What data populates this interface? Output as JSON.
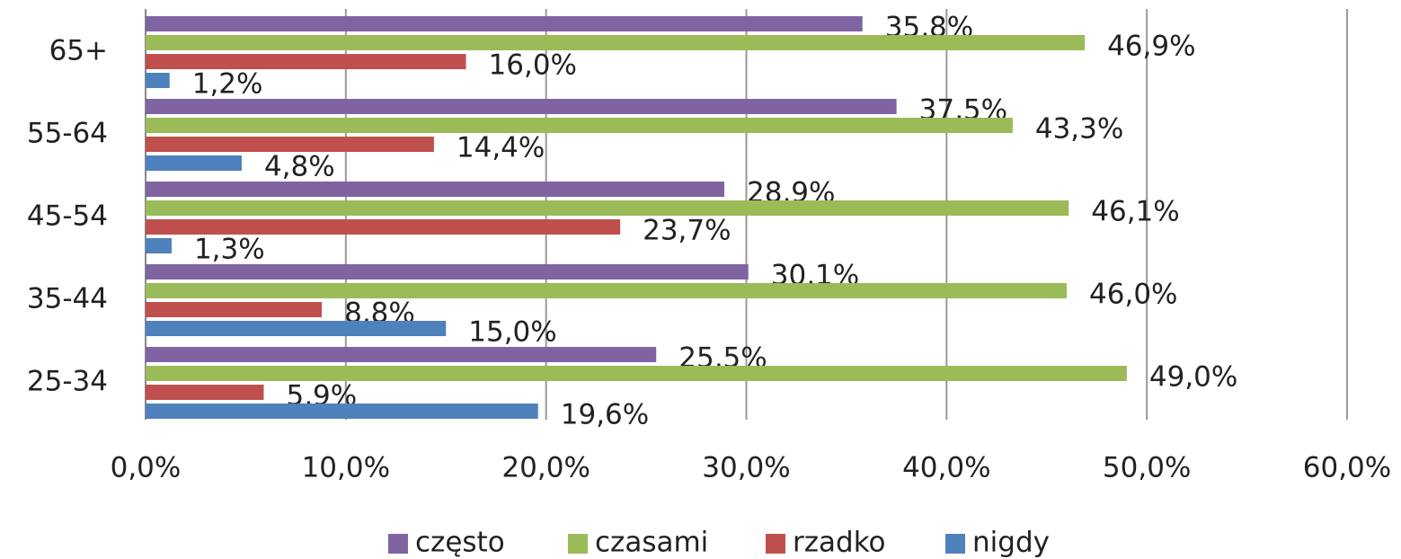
{
  "chart_data": {
    "type": "barh",
    "categories": [
      "25-34",
      "35-44",
      "45-54",
      "55-64",
      "65+"
    ],
    "series": [
      {
        "name": "często",
        "color": "#8064a2",
        "values": [
          25.5,
          30.1,
          28.9,
          37.5,
          35.8
        ],
        "value_labels": [
          "25,5%",
          "30,1%",
          "28,9%",
          "37,5%",
          "35,8%"
        ]
      },
      {
        "name": "czasami",
        "color": "#9bbb59",
        "values": [
          49.0,
          46.0,
          46.1,
          43.3,
          46.9
        ],
        "value_labels": [
          "49,0%",
          "46,0%",
          "46,1%",
          "43,3%",
          "46,9%"
        ]
      },
      {
        "name": "rzadko",
        "color": "#c0504d",
        "values": [
          5.9,
          8.8,
          23.7,
          14.4,
          16.0
        ],
        "value_labels": [
          "5,9%",
          "8,8%",
          "23,7%",
          "14,4%",
          "16,0%"
        ]
      },
      {
        "name": "nigdy",
        "color": "#4f81bd",
        "values": [
          19.6,
          15.0,
          1.3,
          4.8,
          1.2
        ],
        "value_labels": [
          "19,6%",
          "15,0%",
          "1,3%",
          "4,8%",
          "1,2%"
        ]
      }
    ],
    "xlim": [
      0,
      60
    ],
    "xticks": [
      {
        "value": 0,
        "label": "0,0%"
      },
      {
        "value": 10,
        "label": "10,0%"
      },
      {
        "value": 20,
        "label": "20,0%"
      },
      {
        "value": 30,
        "label": "30,0%"
      },
      {
        "value": 40,
        "label": "40,0%"
      },
      {
        "value": 50,
        "label": "50,0%"
      },
      {
        "value": 60,
        "label": "60,0%"
      }
    ],
    "grid": true,
    "legend": "bottom"
  }
}
